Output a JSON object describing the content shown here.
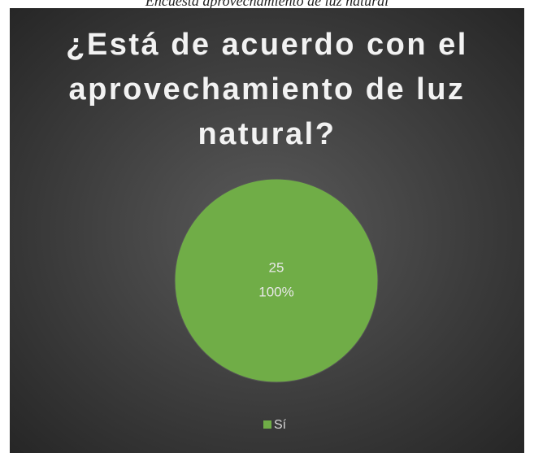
{
  "caption": "Encuesta aprovechamiento de luz natural",
  "chart_data": {
    "type": "pie",
    "title": "¿Está de acuerdo con el aprovechamiento de luz natural?",
    "categories": [
      "Sí"
    ],
    "values": [
      25
    ],
    "percents": [
      100
    ],
    "percent_labels": [
      "100%"
    ],
    "colors": [
      "#70ad47"
    ],
    "legend": "bottom"
  }
}
